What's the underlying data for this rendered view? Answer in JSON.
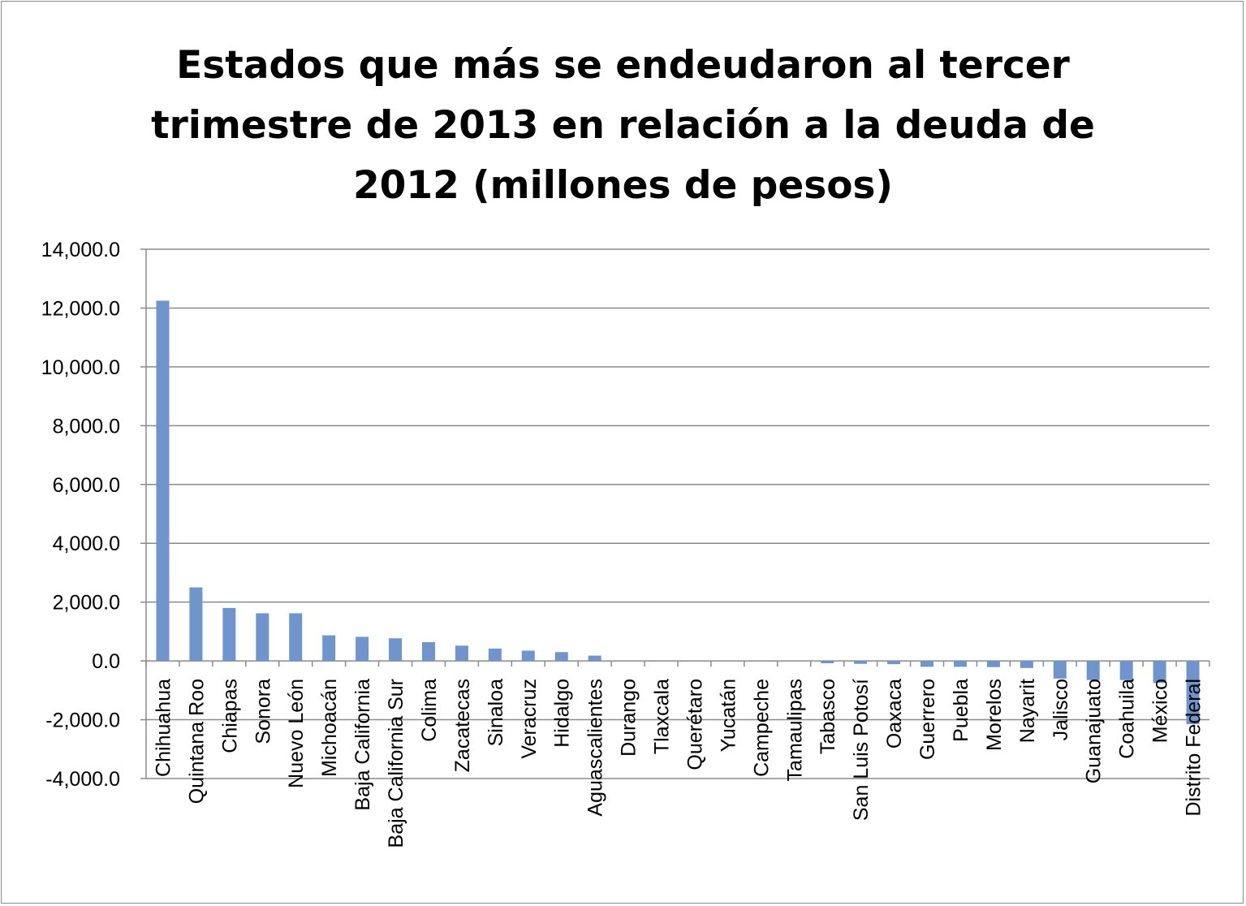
{
  "chart_data": {
    "type": "bar",
    "title_lines": [
      "Estados que más se endeudaron al tercer",
      "trimestre de 2013 en relación a la deuda de",
      "2012 (millones de pesos)"
    ],
    "xlabel": "",
    "ylabel": "",
    "ylim": [
      -4000,
      14000
    ],
    "yticks": [
      14000,
      12000,
      10000,
      8000,
      6000,
      4000,
      2000,
      0,
      -2000,
      -4000
    ],
    "ytick_labels": [
      "14,000.0",
      "12,000.0",
      "10,000.0",
      "8,000.0",
      "6,000.0",
      "4,000.0",
      "2,000.0",
      "0.0",
      "-2,000.0",
      "-4,000.0"
    ],
    "grid": true,
    "legend": "none",
    "bar_color": "#7094cc",
    "categories": [
      "Chihuahua",
      "Quintana Roo",
      "Chiapas",
      "Sonora",
      "Nuevo León",
      "Michoacán",
      "Baja California",
      "Baja California Sur",
      "Colima",
      "Zacatecas",
      "Sinaloa",
      "Veracruz",
      "Hidalgo",
      "Aguascalientes",
      "Durango",
      "Tlaxcala",
      "Querétaro",
      "Yucatán",
      "Campeche",
      "Tamaulipas",
      "Tabasco",
      "San Luis Potosí",
      "Oaxaca",
      "Guerrero",
      "Puebla",
      "Morelos",
      "Nayarit",
      "Jalisco",
      "Guanajuato",
      "Coahuila",
      "México",
      "Distrito Federal"
    ],
    "values": [
      12250,
      2500,
      1800,
      1620,
      1620,
      870,
      820,
      770,
      640,
      520,
      420,
      350,
      300,
      180,
      0,
      0,
      0,
      0,
      0,
      0,
      -80,
      -100,
      -110,
      -200,
      -200,
      -210,
      -240,
      -600,
      -650,
      -650,
      -750,
      -2150
    ]
  }
}
